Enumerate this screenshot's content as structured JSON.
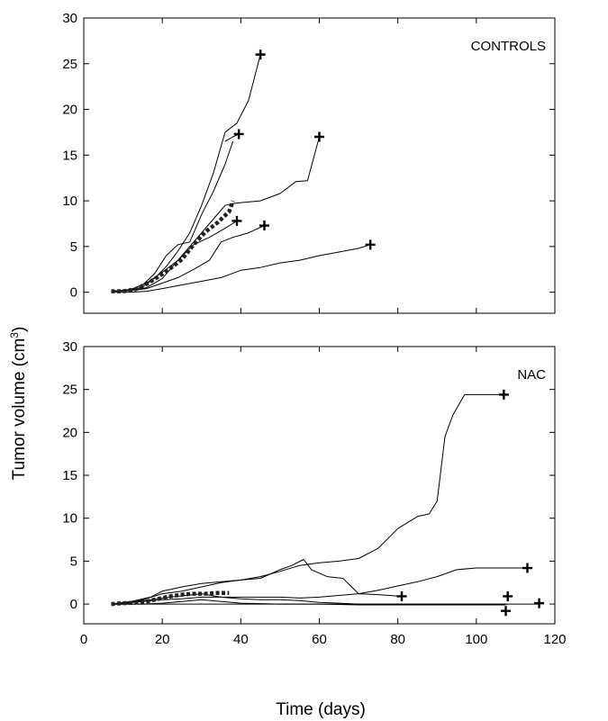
{
  "figure": {
    "ylabel_main": "Tumor volume (cm",
    "ylabel_sup": "3",
    "ylabel_close": ")",
    "xlabel": "Time (days)"
  },
  "chart_data": [
    {
      "type": "line",
      "panel_label": "CONTROLS",
      "xlim": [
        0,
        120
      ],
      "ylim": [
        -2.3,
        30
      ],
      "xticks": [],
      "yticks": [
        0,
        5,
        10,
        15,
        20,
        25,
        30
      ],
      "grid": false,
      "series": [
        {
          "style": "solid",
          "x": [
            7,
            12,
            15,
            18,
            21,
            24,
            27,
            30,
            33,
            36,
            39,
            42,
            45
          ],
          "y": [
            0.1,
            0.2,
            0.6,
            1.5,
            2.8,
            4.5,
            6.5,
            9.5,
            13,
            17.5,
            18.5,
            21,
            26
          ],
          "end_marker": {
            "x": 45,
            "y": 26
          }
        },
        {
          "style": "solid",
          "x": [
            7,
            12,
            15,
            18,
            21,
            24,
            27,
            30,
            33,
            36,
            38
          ],
          "y": [
            0.1,
            0.3,
            0.8,
            2,
            4,
            5.2,
            5.5,
            8.5,
            11,
            14,
            16.5
          ]
        },
        {
          "style": "solid",
          "x": [
            36,
            38,
            39.5
          ],
          "y": [
            16.5,
            17,
            17.3
          ],
          "end_marker": {
            "x": 39.5,
            "y": 17.3
          }
        },
        {
          "style": "solid",
          "x": [
            7,
            12,
            16,
            20,
            24,
            28,
            32,
            36,
            38,
            40,
            45,
            50,
            54,
            57,
            60
          ],
          "y": [
            0.1,
            0.2,
            0.5,
            1.5,
            3.5,
            5.5,
            7.5,
            9.5,
            9.7,
            9.8,
            10,
            10.8,
            12.1,
            12.2,
            17
          ],
          "end_marker": {
            "x": 60,
            "y": 17
          }
        },
        {
          "style": "solid",
          "x": [
            7,
            12,
            16,
            20,
            24,
            28,
            32,
            36,
            39
          ],
          "y": [
            0.1,
            0.3,
            1,
            2.2,
            3.5,
            5.2,
            6,
            7,
            7.8
          ],
          "end_marker": {
            "x": 39,
            "y": 7.8
          }
        },
        {
          "style": "solid",
          "x": [
            7,
            12,
            16,
            20,
            24,
            28,
            32,
            35,
            38,
            42,
            46
          ],
          "y": [
            0.1,
            0.2,
            0.4,
            1,
            1.6,
            2.5,
            3.5,
            5.5,
            6,
            6.5,
            7.3
          ],
          "end_marker": {
            "x": 46,
            "y": 7.3
          }
        },
        {
          "style": "solid",
          "x": [
            7,
            12,
            16,
            20,
            25,
            30,
            35,
            40,
            45,
            50,
            55,
            60,
            65,
            70,
            73
          ],
          "y": [
            0,
            0,
            0.1,
            0.4,
            0.8,
            1.2,
            1.6,
            2.4,
            2.7,
            3.2,
            3.5,
            4,
            4.4,
            4.8,
            5.2
          ],
          "end_marker": {
            "x": 73,
            "y": 5.2
          }
        },
        {
          "style": "dashed",
          "x": [
            7,
            10,
            13,
            16,
            19,
            22,
            25,
            28,
            31,
            34,
            37,
            38
          ],
          "y": [
            0.1,
            0.1,
            0.3,
            0.9,
            1.7,
            2.6,
            3.6,
            5.2,
            6.6,
            7.6,
            8.8,
            10
          ]
        }
      ]
    },
    {
      "type": "line",
      "panel_label": "NAC",
      "xlim": [
        0,
        120
      ],
      "ylim": [
        -2.3,
        30
      ],
      "xticks": [
        0,
        20,
        40,
        60,
        80,
        100,
        120
      ],
      "yticks": [
        0,
        5,
        10,
        15,
        20,
        25,
        30
      ],
      "grid": false,
      "series": [
        {
          "style": "solid",
          "x": [
            7,
            10,
            15,
            20,
            25,
            30,
            35,
            40,
            45,
            50,
            55,
            60,
            65,
            70,
            75,
            80,
            85,
            88,
            90,
            92,
            94,
            97,
            100,
            104,
            107
          ],
          "y": [
            0,
            0,
            0.5,
            1.2,
            1.5,
            2,
            2.5,
            2.8,
            3.2,
            3.8,
            4.5,
            4.8,
            5,
            5.3,
            6.5,
            8.8,
            10.2,
            10.5,
            12,
            19.5,
            22,
            24.4,
            24.4,
            24.4,
            24.4
          ],
          "end_marker": {
            "x": 107,
            "y": 24.4
          }
        },
        {
          "style": "solid",
          "x": [
            7,
            10,
            15,
            20,
            25,
            30,
            35,
            40,
            45,
            50,
            55,
            60,
            65,
            70,
            75,
            80,
            85,
            90,
            95,
            100,
            105,
            109,
            113
          ],
          "y": [
            0,
            0.1,
            0.3,
            0.5,
            0.6,
            0.8,
            0.8,
            0.8,
            0.8,
            0.8,
            0.7,
            0.8,
            1,
            1.2,
            1.6,
            2.1,
            2.6,
            3.2,
            4,
            4.2,
            4.2,
            4.2,
            4.2
          ],
          "end_marker": {
            "x": 113,
            "y": 4.2
          }
        },
        {
          "style": "solid",
          "x": [
            7,
            12,
            17,
            20,
            25,
            30,
            35,
            40,
            45,
            50,
            53,
            56,
            58,
            62,
            66,
            70
          ],
          "y": [
            0,
            0.3,
            0.8,
            1.5,
            2,
            2.4,
            2.6,
            2.8,
            3,
            4,
            4.5,
            5.2,
            4,
            3.2,
            3,
            1.2
          ]
        },
        {
          "style": "solid",
          "x": [
            70,
            75,
            81
          ],
          "y": [
            1.2,
            1.1,
            0.9
          ],
          "end_marker": {
            "x": 81,
            "y": 0.9
          }
        },
        {
          "style": "solid",
          "x": [
            7,
            12,
            17,
            22,
            26,
            30,
            35,
            40,
            45,
            50,
            55,
            60,
            65,
            70,
            80,
            90,
            100,
            108
          ],
          "y": [
            0,
            0.2,
            0.5,
            0.8,
            1,
            1.2,
            0.8,
            0.6,
            0.5,
            0.5,
            0.4,
            0.2,
            0.1,
            0,
            0,
            0,
            0,
            0
          ],
          "end_marker": {
            "x": 108,
            "y": 0.9
          }
        },
        {
          "style": "solid",
          "x": [
            7,
            15,
            20,
            25,
            30,
            35,
            40,
            50,
            60,
            70,
            80,
            90,
            100,
            107.5
          ],
          "y": [
            0,
            0,
            0.1,
            0.3,
            0.5,
            0.3,
            0.1,
            0,
            0,
            -0.1,
            -0.1,
            -0.1,
            -0.1,
            -0.1
          ],
          "end_marker": {
            "x": 107.5,
            "y": -0.8
          }
        },
        {
          "style": "solid",
          "x": [
            7,
            20,
            30,
            40,
            50,
            60,
            70,
            80,
            90,
            100,
            110,
            116
          ],
          "y": [
            0,
            0,
            0,
            0,
            0,
            0,
            0,
            0,
            0,
            0,
            0,
            0
          ],
          "end_marker": {
            "x": 116,
            "y": 0.1
          }
        },
        {
          "style": "dashed",
          "x": [
            7,
            10,
            13,
            16,
            19,
            22,
            25,
            28,
            31,
            34,
            37
          ],
          "y": [
            0,
            0.1,
            0.15,
            0.3,
            0.6,
            0.9,
            1.1,
            1.2,
            1.2,
            1.3,
            1.3
          ]
        }
      ]
    }
  ]
}
